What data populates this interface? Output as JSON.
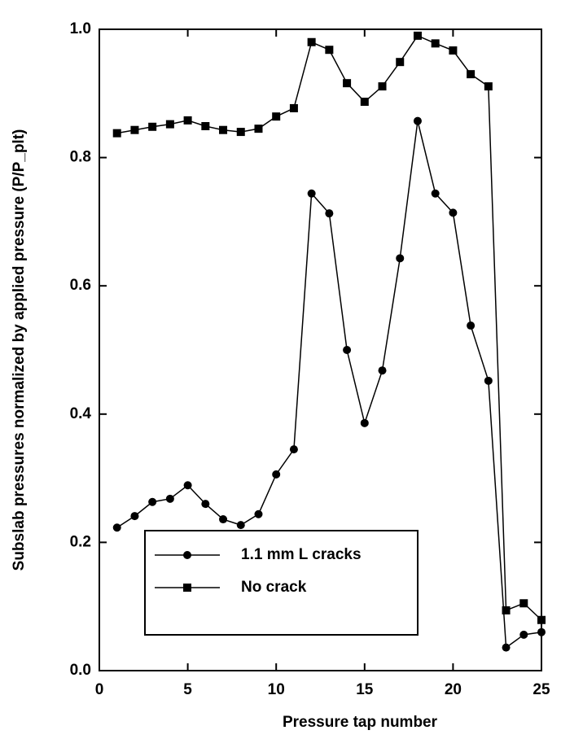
{
  "chart_data": {
    "type": "line",
    "xlabel": "Pressure tap number",
    "ylabel": "Subslab pressures normalized by applied pressure (P/P_plt)",
    "x": [
      1,
      2,
      3,
      4,
      5,
      6,
      7,
      8,
      9,
      10,
      11,
      12,
      13,
      14,
      15,
      16,
      17,
      18,
      19,
      20,
      21,
      22,
      23,
      24,
      25
    ],
    "series": [
      {
        "name": "1.1 mm L cracks",
        "color": "#000000",
        "marker": "circle",
        "values": [
          0.223,
          0.241,
          0.263,
          0.268,
          0.289,
          0.26,
          0.236,
          0.227,
          0.244,
          0.306,
          0.345,
          0.744,
          0.713,
          0.5,
          0.386,
          0.468,
          0.643,
          0.857,
          0.744,
          0.714,
          0.538,
          0.452,
          0.036,
          0.056,
          0.06
        ]
      },
      {
        "name": "No crack",
        "color": "#000000",
        "marker": "square",
        "values": [
          0.838,
          0.843,
          0.848,
          0.852,
          0.858,
          0.849,
          0.843,
          0.84,
          0.845,
          0.864,
          0.877,
          0.98,
          0.968,
          0.916,
          0.887,
          0.911,
          0.949,
          0.99,
          0.978,
          0.967,
          0.93,
          0.911,
          0.094,
          0.105,
          0.079
        ]
      }
    ],
    "xlim": [
      0,
      25
    ],
    "xticks": [
      0,
      5,
      10,
      15,
      20,
      25
    ],
    "ylim": [
      0,
      1
    ],
    "yticks": [
      {
        "value": 0,
        "label": "0.0"
      },
      0.2,
      0.4,
      0.6,
      0.8,
      {
        "value": 1,
        "label": "1.0"
      }
    ],
    "grid": false,
    "legend": "lower left"
  }
}
